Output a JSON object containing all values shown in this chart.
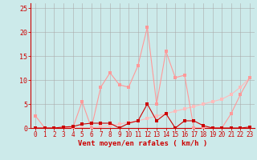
{
  "xlabel": "Vent moyen/en rafales ( km/h )",
  "background_color": "#cceaea",
  "grid_color": "#aaaaaa",
  "x_ticks": [
    0,
    1,
    2,
    3,
    4,
    5,
    6,
    7,
    8,
    9,
    10,
    11,
    12,
    13,
    14,
    15,
    16,
    17,
    18,
    19,
    20,
    21,
    22,
    23
  ],
  "y_ticks": [
    0,
    5,
    10,
    15,
    20,
    25
  ],
  "ylim": [
    0,
    26
  ],
  "xlim": [
    -0.5,
    23.5
  ],
  "line1_x": [
    0,
    1,
    2,
    3,
    4,
    5,
    6,
    7,
    8,
    9,
    10,
    11,
    12,
    13,
    14,
    15,
    16,
    17,
    18,
    19,
    20,
    21,
    22,
    23
  ],
  "line1_y": [
    2.5,
    0,
    0,
    0,
    0,
    5.5,
    0,
    8.5,
    11.5,
    9,
    8.5,
    13,
    21,
    5,
    16,
    10.5,
    11,
    0,
    0,
    0,
    0,
    3,
    7,
    10.5
  ],
  "line1_color": "#ff9999",
  "line2_x": [
    0,
    1,
    2,
    3,
    4,
    5,
    6,
    7,
    8,
    9,
    10,
    11,
    12,
    13,
    14,
    15,
    16,
    17,
    18,
    19,
    20,
    21,
    22,
    23
  ],
  "line2_y": [
    0,
    0,
    0,
    0.2,
    0.3,
    0.8,
    1,
    1,
    1,
    0,
    1,
    1.5,
    5,
    1.5,
    3,
    0,
    1.5,
    1.5,
    0.5,
    0,
    0,
    0,
    0,
    0.2
  ],
  "line2_color": "#cc0000",
  "line3_x": [
    0,
    1,
    2,
    3,
    4,
    5,
    6,
    7,
    8,
    9,
    10,
    11,
    12,
    13,
    14,
    15,
    16,
    17,
    18,
    19,
    20,
    21,
    22,
    23
  ],
  "line3_y": [
    0,
    0,
    0,
    0,
    0,
    0,
    0,
    0.3,
    0.5,
    0.8,
    1.2,
    1.5,
    2,
    2.5,
    3,
    3.5,
    4,
    4.5,
    5,
    5.5,
    6,
    7,
    8.5,
    10.5
  ],
  "line3_color": "#ffbbbb",
  "text_color": "#cc0000",
  "spine_color": "#cc0000",
  "marker": "s",
  "markersize": 2.5,
  "linewidth": 0.8
}
